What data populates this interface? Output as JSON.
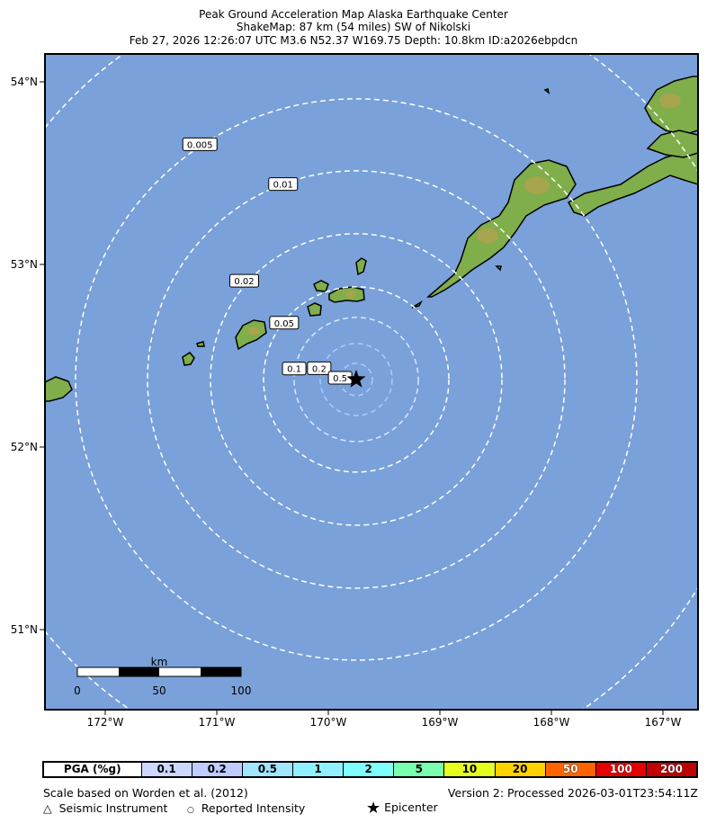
{
  "title": {
    "line1": "Peak Ground Acceleration Map Alaska Earthquake Center",
    "line2": "ShakeMap: 87 km (54 miles) SW of Nikolski",
    "line3": "Feb 27, 2026 12:26:07 UTC M3.6 N52.37 W169.75 Depth: 10.8km ID:a2026ebpdcn"
  },
  "map": {
    "ocean_color": "#7aa1d9",
    "land_color": "#7fae4a",
    "epicenter": {
      "lat": 52.37,
      "lon": -169.75
    },
    "lon_ticks": [
      "172°W",
      "171°W",
      "170°W",
      "169°W",
      "168°W",
      "167°W"
    ],
    "lat_ticks": [
      "54°N",
      "53°N",
      "52°N",
      "51°N"
    ],
    "contour_labels": [
      "0.005",
      "0.01",
      "0.02",
      "0.05",
      "0.1",
      "0.2",
      "0.5"
    ],
    "scale_bar": {
      "unit": "km",
      "labels": [
        "0",
        "50",
        "100"
      ]
    }
  },
  "legend": {
    "header": "PGA (%g)",
    "bins": [
      {
        "label": "0.1",
        "color": "#ccd8ff"
      },
      {
        "label": "0.2",
        "color": "#bfccff"
      },
      {
        "label": "0.5",
        "color": "#a0e6ff"
      },
      {
        "label": "1",
        "color": "#90f0ff"
      },
      {
        "label": "2",
        "color": "#80ffff"
      },
      {
        "label": "5",
        "color": "#7affb0"
      },
      {
        "label": "10",
        "color": "#e6ff1e"
      },
      {
        "label": "20",
        "color": "#ffd200"
      },
      {
        "label": "50",
        "color": "#ff6400"
      },
      {
        "label": "100",
        "color": "#e60000"
      },
      {
        "label": "200",
        "color": "#c00000"
      }
    ]
  },
  "footer": {
    "scale_note": "Scale based on Worden et al. (2012)",
    "version": "Version 2: Processed 2026-03-01T23:54:11Z",
    "instrument": "Seismic Instrument",
    "reported": "Reported Intensity",
    "epicenter": "Epicenter"
  }
}
